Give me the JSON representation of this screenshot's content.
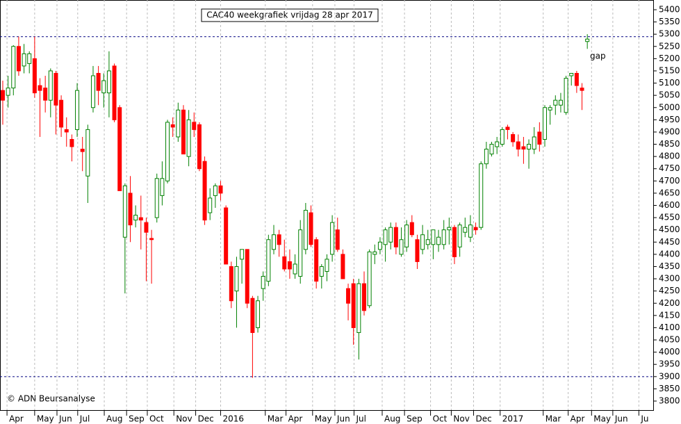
{
  "chart_data": {
    "type": "candlestick",
    "title": "CAC40 weekgrafiek vrijdag 28 apr 2017",
    "credit": "© ADN Beursanalyse",
    "annotations": [
      {
        "text": "gap",
        "x": 110.5,
        "y": 5210
      }
    ],
    "levels": [
      5290,
      3900
    ],
    "up_color": "#008000",
    "down_color": "#ff0000",
    "grid": true,
    "ylim": [
      3800,
      5400
    ],
    "yticks": [
      3800,
      3850,
      3900,
      3950,
      4000,
      4050,
      4100,
      4150,
      4200,
      4250,
      4300,
      4350,
      4400,
      4450,
      4500,
      4550,
      4600,
      4650,
      4700,
      4750,
      4800,
      4850,
      4900,
      4950,
      5000,
      5050,
      5100,
      5150,
      5200,
      5250,
      5300,
      5350,
      5400
    ],
    "xlim": [
      -0.52,
      122.4
    ],
    "xticks": [
      {
        "value": 0.8,
        "label": "Apr"
      },
      {
        "value": 6.0,
        "label": "May"
      },
      {
        "value": 10.2,
        "label": "Jun"
      },
      {
        "value": 14.1,
        "label": "Jul"
      },
      {
        "value": 19.1,
        "label": "Aug"
      },
      {
        "value": 23.3,
        "label": "Sep"
      },
      {
        "value": 27.2,
        "label": "Oct"
      },
      {
        "value": 32.2,
        "label": "Nov"
      },
      {
        "value": 36.3,
        "label": "Dec"
      },
      {
        "value": 41.0,
        "label": "2016"
      },
      {
        "value": 49.4,
        "label": "Mar"
      },
      {
        "value": 53.3,
        "label": "Apr"
      },
      {
        "value": 58.3,
        "label": "May"
      },
      {
        "value": 62.5,
        "label": "Jun"
      },
      {
        "value": 66.1,
        "label": "Jul"
      },
      {
        "value": 71.4,
        "label": "Aug"
      },
      {
        "value": 75.6,
        "label": "Sep"
      },
      {
        "value": 80.5,
        "label": "Oct"
      },
      {
        "value": 84.4,
        "label": "Nov"
      },
      {
        "value": 88.6,
        "label": "Dec"
      },
      {
        "value": 93.6,
        "label": "2017"
      },
      {
        "value": 101.7,
        "label": "Mar"
      },
      {
        "value": 106.4,
        "label": "Apr"
      },
      {
        "value": 110.8,
        "label": "May"
      },
      {
        "value": 114.8,
        "label": "Jun"
      },
      {
        "value": 119.7,
        "label": "Ju"
      }
    ],
    "ohlc": [
      [
        5070,
        5110,
        4930,
        5030
      ],
      [
        5050,
        5130,
        5000,
        5080
      ],
      [
        5080,
        5255,
        5050,
        5250
      ],
      [
        5250,
        5290,
        5130,
        5150
      ],
      [
        5170,
        5260,
        5140,
        5220
      ],
      [
        5180,
        5230,
        5140,
        5220
      ],
      [
        5200,
        5290,
        5040,
        5060
      ],
      [
        5090,
        5120,
        4880,
        5070
      ],
      [
        5080,
        5130,
        4980,
        5030
      ],
      [
        5030,
        5160,
        4960,
        5150
      ],
      [
        5140,
        5150,
        4890,
        5010
      ],
      [
        5030,
        5050,
        4880,
        4920
      ],
      [
        4910,
        4960,
        4840,
        4900
      ],
      [
        4870,
        4890,
        4780,
        4840
      ],
      [
        4910,
        5100,
        4880,
        5070
      ],
      [
        4830,
        4880,
        4740,
        4820
      ],
      [
        4720,
        4930,
        4610,
        4910
      ],
      [
        5000,
        5170,
        4980,
        5130
      ],
      [
        5140,
        5170,
        5010,
        5070
      ],
      [
        5060,
        5140,
        5000,
        5110
      ],
      [
        5060,
        5230,
        4960,
        5150
      ],
      [
        5170,
        5180,
        4940,
        4950
      ],
      [
        5000,
        5010,
        4660,
        4660
      ],
      [
        4470,
        4690,
        4240,
        4680
      ],
      [
        4650,
        4720,
        4450,
        4520
      ],
      [
        4540,
        4600,
        4510,
        4560
      ],
      [
        4550,
        4640,
        4420,
        4540
      ],
      [
        4530,
        4550,
        4290,
        4490
      ],
      [
        4465,
        4500,
        4280,
        4460
      ],
      [
        4550,
        4730,
        4530,
        4710
      ],
      [
        4640,
        4780,
        4600,
        4710
      ],
      [
        4700,
        4950,
        4690,
        4940
      ],
      [
        4930,
        4960,
        4880,
        4920
      ],
      [
        4880,
        5020,
        4860,
        4990
      ],
      [
        4990,
        5010,
        4810,
        4810
      ],
      [
        4800,
        4990,
        4760,
        4950
      ],
      [
        4940,
        4980,
        4880,
        4910
      ],
      [
        4930,
        4940,
        4740,
        4750
      ],
      [
        4780,
        4800,
        4520,
        4540
      ],
      [
        4570,
        4670,
        4540,
        4630
      ],
      [
        4640,
        4690,
        4590,
        4680
      ],
      [
        4680,
        4700,
        4620,
        4650
      ],
      [
        4590,
        4600,
        4360,
        4360
      ],
      [
        4350,
        4370,
        4180,
        4210
      ],
      [
        4250,
        4390,
        4100,
        4350
      ],
      [
        4380,
        4420,
        4280,
        4420
      ],
      [
        4420,
        4420,
        4180,
        4200
      ],
      [
        4220,
        4230,
        3895,
        4080
      ],
      [
        4100,
        4230,
        4080,
        4210
      ],
      [
        4260,
        4330,
        4210,
        4310
      ],
      [
        4290,
        4480,
        4270,
        4460
      ],
      [
        4420,
        4520,
        4400,
        4480
      ],
      [
        4480,
        4500,
        4390,
        4440
      ],
      [
        4390,
        4460,
        4330,
        4340
      ],
      [
        4370,
        4420,
        4300,
        4340
      ],
      [
        4320,
        4400,
        4300,
        4360
      ],
      [
        4310,
        4540,
        4280,
        4500
      ],
      [
        4420,
        4610,
        4400,
        4580
      ],
      [
        4570,
        4600,
        4430,
        4440
      ],
      [
        4460,
        4470,
        4260,
        4290
      ],
      [
        4310,
        4360,
        4260,
        4350
      ],
      [
        4330,
        4400,
        4290,
        4380
      ],
      [
        4400,
        4560,
        4370,
        4530
      ],
      [
        4500,
        4550,
        4410,
        4420
      ],
      [
        4400,
        4420,
        4300,
        4300
      ],
      [
        4260,
        4280,
        4130,
        4200
      ],
      [
        4280,
        4300,
        4030,
        4100
      ],
      [
        4080,
        4300,
        3970,
        4280
      ],
      [
        4280,
        4330,
        4150,
        4170
      ],
      [
        4190,
        4420,
        4180,
        4410
      ],
      [
        4400,
        4440,
        4360,
        4410
      ],
      [
        4420,
        4470,
        4400,
        4450
      ],
      [
        4440,
        4510,
        4370,
        4500
      ],
      [
        4450,
        4530,
        4420,
        4510
      ],
      [
        4510,
        4530,
        4400,
        4430
      ],
      [
        4400,
        4510,
        4390,
        4460
      ],
      [
        4430,
        4540,
        4410,
        4520
      ],
      [
        4530,
        4560,
        4470,
        4480
      ],
      [
        4460,
        4480,
        4340,
        4370
      ],
      [
        4420,
        4520,
        4400,
        4480
      ],
      [
        4440,
        4500,
        4420,
        4460
      ],
      [
        4440,
        4500,
        4380,
        4500
      ],
      [
        4440,
        4500,
        4410,
        4470
      ],
      [
        4440,
        4540,
        4420,
        4500
      ],
      [
        4500,
        4550,
        4440,
        4510
      ],
      [
        4510,
        4520,
        4360,
        4390
      ],
      [
        4430,
        4530,
        4390,
        4520
      ],
      [
        4490,
        4550,
        4470,
        4510
      ],
      [
        4470,
        4560,
        4450,
        4520
      ],
      [
        4510,
        4530,
        4480,
        4500
      ],
      [
        4510,
        4780,
        4500,
        4770
      ],
      [
        4770,
        4860,
        4750,
        4830
      ],
      [
        4810,
        4860,
        4800,
        4850
      ],
      [
        4840,
        4880,
        4810,
        4860
      ],
      [
        4850,
        4920,
        4840,
        4910
      ],
      [
        4920,
        4930,
        4870,
        4910
      ],
      [
        4890,
        4900,
        4840,
        4860
      ],
      [
        4860,
        4890,
        4800,
        4830
      ],
      [
        4840,
        4880,
        4770,
        4830
      ],
      [
        4830,
        4870,
        4750,
        4850
      ],
      [
        4830,
        4920,
        4810,
        4880
      ],
      [
        4900,
        4940,
        4820,
        4850
      ],
      [
        4870,
        5010,
        4840,
        5000
      ],
      [
        4990,
        5010,
        4930,
        5000
      ],
      [
        5010,
        5050,
        4970,
        5030
      ],
      [
        5010,
        5060,
        4980,
        5030
      ],
      [
        4980,
        5130,
        4970,
        5120
      ],
      [
        5130,
        5140,
        5090,
        5140
      ],
      [
        5140,
        5150,
        5060,
        5090
      ],
      [
        5080,
        5100,
        4990,
        5070
      ],
      [
        5270,
        5300,
        5240,
        5280
      ]
    ]
  }
}
